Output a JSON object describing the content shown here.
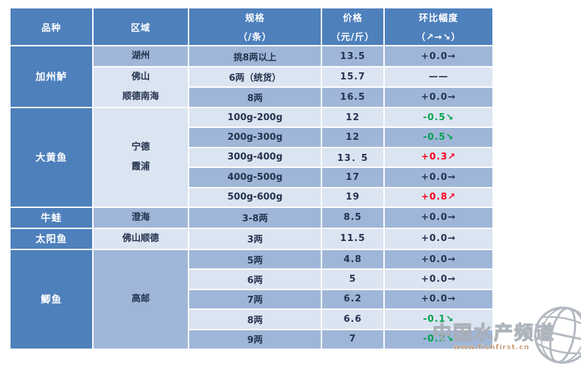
{
  "colors": {
    "header_bg": "#4e80bc",
    "header_text": "#ffffff",
    "band_medium": "#9fb6d8",
    "band_light": "#dbe4f1",
    "text": "#24344f",
    "up": "#f6081e",
    "down": "#00a34e",
    "watermark_gray": "#a8aeb6",
    "watermark_url": "#b9824f"
  },
  "chart_data": {
    "type": "table",
    "columns": [
      {
        "line1": "品种",
        "line2": ""
      },
      {
        "line1": "区域",
        "line2": ""
      },
      {
        "line1": "规格",
        "line2": "（/条）"
      },
      {
        "line1": "价格",
        "line2": "（元/斤）"
      },
      {
        "line1": "环比幅度",
        "line2": "（↗→↘）"
      }
    ],
    "variety_groups": [
      {
        "label": "加州鲈",
        "rowspan": 3
      },
      {
        "label": "大黄鱼",
        "rowspan": 5
      },
      {
        "label": "牛蛙",
        "rowspan": 1
      },
      {
        "label": "太阳鱼",
        "rowspan": 1
      },
      {
        "label": "鲫鱼",
        "rowspan": 5
      }
    ],
    "region_groups": [
      {
        "lines": [
          "湖州"
        ],
        "rowspan": 1
      },
      {
        "lines": [
          "佛山",
          "顺德南海"
        ],
        "rowspan": 2
      },
      {
        "lines": [
          "宁德",
          "霞浦"
        ],
        "rowspan": 5
      },
      {
        "lines": [
          "澄海"
        ],
        "rowspan": 1
      },
      {
        "lines": [
          "佛山顺德"
        ],
        "rowspan": 1
      },
      {
        "lines": [
          "高邮"
        ],
        "rowspan": 5
      }
    ],
    "rows": [
      {
        "spec": "挑8两以上",
        "price": "13.5",
        "change": "+0.0→",
        "trend": "flat"
      },
      {
        "spec": "6两（统货）",
        "price": "15.7",
        "change": "——",
        "trend": "none"
      },
      {
        "spec": "8两",
        "price": "16.5",
        "change": "+0.0→",
        "trend": "flat"
      },
      {
        "spec": "100g-200g",
        "price": "12",
        "change": "-0.5↘",
        "trend": "down"
      },
      {
        "spec": "200g-300g",
        "price": "12",
        "change": "-0.5↘",
        "trend": "down"
      },
      {
        "spec": "300g-400g",
        "price": "13．5",
        "change": "+0.3↗",
        "trend": "up"
      },
      {
        "spec": "400g-500g",
        "price": "17",
        "change": "+0.0→",
        "trend": "flat"
      },
      {
        "spec": "500g-600g",
        "price": "19",
        "change": "+0.8↗",
        "trend": "up"
      },
      {
        "spec": "3-8两",
        "price": "8.5",
        "change": "+0.0→",
        "trend": "flat"
      },
      {
        "spec": "3两",
        "price": "11.5",
        "change": "+0.0→",
        "trend": "flat"
      },
      {
        "spec": "5两",
        "price": "4.8",
        "change": "+0.0→",
        "trend": "flat"
      },
      {
        "spec": "6两",
        "price": "5",
        "change": "+0.0→",
        "trend": "flat"
      },
      {
        "spec": "7两",
        "price": "6.2",
        "change": "+0.0→",
        "trend": "flat"
      },
      {
        "spec": "8两",
        "price": "6.6",
        "change": "-0.1↘",
        "trend": "down"
      },
      {
        "spec": "9两",
        "price": "7",
        "change": "-0.2↘",
        "trend": "down"
      }
    ]
  },
  "watermark": {
    "text": "中国水产频道",
    "url": "www.fishfirst.cn"
  }
}
